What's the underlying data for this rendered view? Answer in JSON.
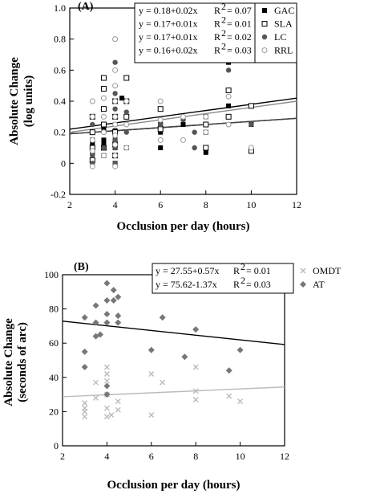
{
  "chart_data": [
    {
      "panel": "(A)",
      "type": "scatter",
      "xlabel": "Occlusion per day (hours)",
      "ylabel": "Absolute Change",
      "ylabel2": "(log units)",
      "xlim": [
        2,
        12
      ],
      "ylim": [
        -0.2,
        1.0
      ],
      "xticks": [
        2,
        4,
        6,
        8,
        10,
        12
      ],
      "yticks": [
        -0.2,
        0,
        0.2,
        0.4,
        0.6,
        0.8,
        1.0
      ],
      "grid": false,
      "legend_placement": "top-right",
      "series": [
        {
          "name": "GAC",
          "marker": "filled-square",
          "color": "#000000",
          "fit": {
            "equation": "y = 0.18+0.02x",
            "r2_label": "R",
            "r2_value": "= 0.07",
            "intercept": 0.18,
            "slope": 0.02
          },
          "points": [
            [
              3,
              0.15
            ],
            [
              3,
              0.12
            ],
            [
              3,
              0.07
            ],
            [
              3,
              0.02
            ],
            [
              3.5,
              0.22
            ],
            [
              3.5,
              0.15
            ],
            [
              3.5,
              0.12
            ],
            [
              3.5,
              0.05
            ],
            [
              4,
              0.21
            ],
            [
              4,
              0.15
            ],
            [
              4,
              0.1
            ],
            [
              4,
              0.05
            ],
            [
              4,
              0.0
            ],
            [
              4.3,
              0.42
            ],
            [
              4.5,
              0.3
            ],
            [
              4.5,
              0.1
            ],
            [
              6,
              0.25
            ],
            [
              6,
              0.2
            ],
            [
              6,
              0.1
            ],
            [
              7,
              0.25
            ],
            [
              8,
              0.3
            ],
            [
              8,
              0.2
            ],
            [
              8,
              0.07
            ],
            [
              9,
              0.65
            ],
            [
              9,
              0.37
            ],
            [
              10,
              0.25
            ]
          ]
        },
        {
          "name": "SLA",
          "marker": "open-square",
          "color": "#000000",
          "fit": {
            "equation": "y = 0.17+0.01x",
            "r2_label": "R",
            "r2_value": "= 0.01",
            "intercept": 0.17,
            "slope": 0.01
          },
          "points": [
            [
              3,
              0.3
            ],
            [
              3,
              0.2
            ],
            [
              3,
              0.1
            ],
            [
              3,
              0.02
            ],
            [
              3.5,
              0.55
            ],
            [
              3.5,
              0.48
            ],
            [
              3.5,
              0.35
            ],
            [
              3.5,
              0.25
            ],
            [
              3.5,
              0.1
            ],
            [
              4,
              0.4
            ],
            [
              4,
              0.3
            ],
            [
              4,
              0.2
            ],
            [
              4,
              0.12
            ],
            [
              4,
              0.05
            ],
            [
              4.5,
              0.55
            ],
            [
              4.5,
              0.4
            ],
            [
              4.5,
              0.3
            ],
            [
              6,
              0.35
            ],
            [
              6,
              0.22
            ],
            [
              8,
              0.25
            ],
            [
              8,
              0.1
            ],
            [
              9,
              0.47
            ],
            [
              9,
              0.3
            ],
            [
              10,
              0.37
            ],
            [
              10,
              0.08
            ]
          ]
        },
        {
          "name": "LC",
          "marker": "filled-circle",
          "color": "#555555",
          "fit": {
            "equation": "y = 0.17+0.01x",
            "r2_label": "R",
            "r2_value": "= 0.02",
            "intercept": 0.17,
            "slope": 0.01
          },
          "points": [
            [
              3,
              0.25
            ],
            [
              3,
              0.15
            ],
            [
              3,
              0.05
            ],
            [
              3,
              0.0
            ],
            [
              3.5,
              0.3
            ],
            [
              3.5,
              0.2
            ],
            [
              3.5,
              0.1
            ],
            [
              4,
              0.65
            ],
            [
              4,
              0.45
            ],
            [
              4,
              0.35
            ],
            [
              4,
              0.25
            ],
            [
              4,
              0.15
            ],
            [
              4,
              0.1
            ],
            [
              4,
              0.0
            ],
            [
              4.5,
              0.33
            ],
            [
              4.5,
              0.2
            ],
            [
              6,
              0.25
            ],
            [
              6,
              0.15
            ],
            [
              7,
              0.28
            ],
            [
              7.5,
              0.2
            ],
            [
              7.5,
              0.1
            ],
            [
              8,
              0.2
            ],
            [
              9,
              0.6
            ],
            [
              10,
              0.25
            ]
          ]
        },
        {
          "name": "RRL",
          "marker": "open-circle",
          "color": "#999999",
          "fit": {
            "equation": "y = 0.16+0.02x",
            "r2_label": "R",
            "r2_value": "= 0.03",
            "intercept": 0.16,
            "slope": 0.02
          },
          "points": [
            [
              3,
              0.4
            ],
            [
              3,
              0.3
            ],
            [
              3,
              0.15
            ],
            [
              3,
              0.08
            ],
            [
              3,
              -0.02
            ],
            [
              3.5,
              0.42
            ],
            [
              3.5,
              0.3
            ],
            [
              3.5,
              0.2
            ],
            [
              3.5,
              0.05
            ],
            [
              4,
              0.8
            ],
            [
              4,
              0.6
            ],
            [
              4,
              0.5
            ],
            [
              4,
              0.4
            ],
            [
              4,
              0.3
            ],
            [
              4,
              0.25
            ],
            [
              4,
              0.18
            ],
            [
              4,
              0.12
            ],
            [
              4,
              0.05
            ],
            [
              4,
              -0.02
            ],
            [
              4.5,
              0.4
            ],
            [
              4.5,
              0.25
            ],
            [
              4.5,
              0.1
            ],
            [
              6,
              0.4
            ],
            [
              6,
              0.28
            ],
            [
              6,
              0.15
            ],
            [
              7,
              0.3
            ],
            [
              7,
              0.15
            ],
            [
              8,
              0.3
            ],
            [
              8,
              0.2
            ],
            [
              9,
              0.43
            ],
            [
              9,
              0.25
            ],
            [
              10,
              0.1
            ]
          ]
        }
      ]
    },
    {
      "panel": "(B)",
      "type": "scatter",
      "xlabel": "Occlusion per day (hours)",
      "ylabel": "Absolute Change",
      "ylabel2": "(seconds of arc)",
      "xlim": [
        2,
        12
      ],
      "ylim": [
        0,
        100
      ],
      "xticks": [
        2,
        4,
        6,
        8,
        10,
        12
      ],
      "yticks": [
        0,
        20,
        40,
        60,
        80,
        100
      ],
      "grid": false,
      "legend_placement": "top-right",
      "series": [
        {
          "name": "OMDT",
          "marker": "cross",
          "color": "#bbbbbb",
          "fit": {
            "equation": "y = 27.55+0.57x",
            "r2_label": "R",
            "r2_value": "= 0.01",
            "intercept": 27.55,
            "slope": 0.57
          },
          "points": [
            [
              3,
              25
            ],
            [
              3,
              22
            ],
            [
              3,
              20
            ],
            [
              3,
              17
            ],
            [
              3.5,
              37
            ],
            [
              3.5,
              28
            ],
            [
              4,
              46
            ],
            [
              4,
              42
            ],
            [
              4,
              38
            ],
            [
              4,
              30
            ],
            [
              4,
              22
            ],
            [
              4,
              17
            ],
            [
              4.2,
              18
            ],
            [
              4.5,
              26
            ],
            [
              4.5,
              21
            ],
            [
              6,
              42
            ],
            [
              6,
              18
            ],
            [
              6.5,
              37
            ],
            [
              8,
              46
            ],
            [
              8,
              32
            ],
            [
              8,
              27
            ],
            [
              9.5,
              29
            ],
            [
              10,
              26
            ]
          ]
        },
        {
          "name": "AT",
          "marker": "filled-diamond",
          "color": "#777777",
          "fit": {
            "equation": "y = 75.62-1.37x",
            "r2_label": "R",
            "r2_value": "= 0.03",
            "intercept": 75.62,
            "slope": -1.37
          },
          "points": [
            [
              3,
              75
            ],
            [
              3,
              55
            ],
            [
              3,
              46
            ],
            [
              3.5,
              82
            ],
            [
              3.5,
              72
            ],
            [
              3.5,
              64
            ],
            [
              3.7,
              65
            ],
            [
              4,
              95
            ],
            [
              4,
              85
            ],
            [
              4,
              77
            ],
            [
              4,
              72
            ],
            [
              4,
              35
            ],
            [
              4,
              30
            ],
            [
              4.3,
              91
            ],
            [
              4.3,
              85
            ],
            [
              4.5,
              87
            ],
            [
              4.5,
              76
            ],
            [
              4.5,
              72
            ],
            [
              6,
              56
            ],
            [
              6.5,
              75
            ],
            [
              7.5,
              52
            ],
            [
              8,
              94
            ],
            [
              8,
              68
            ],
            [
              9.5,
              44
            ],
            [
              10,
              56
            ]
          ]
        }
      ]
    }
  ]
}
